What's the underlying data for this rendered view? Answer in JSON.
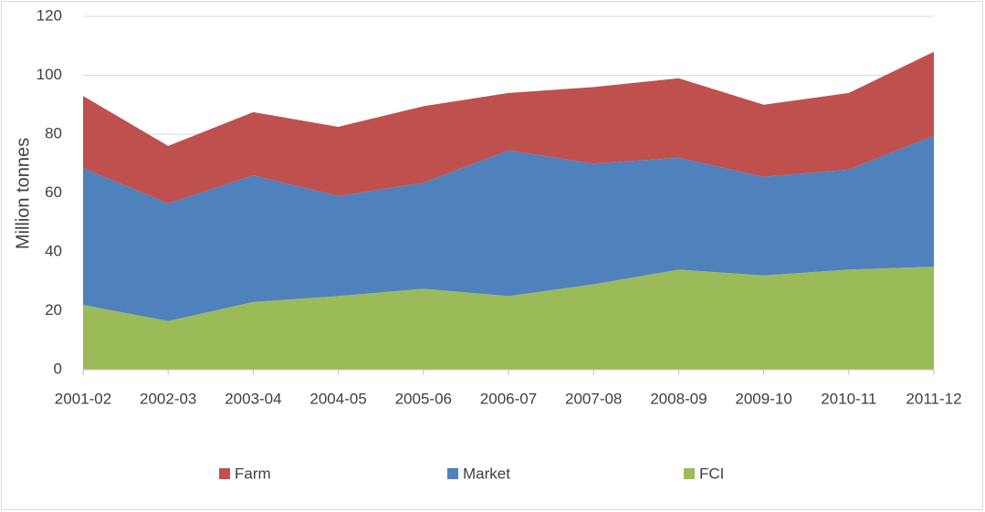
{
  "chart_data": {
    "type": "stacked_area",
    "y_label": "Million tonnes",
    "categories": [
      "2001-02",
      "2002-03",
      "2003-04",
      "2004-05",
      "2005-06",
      "2006-07",
      "2007-08",
      "2008-09",
      "2009-10",
      "2010-11",
      "2011-12"
    ],
    "series": [
      {
        "name": "Farm",
        "color": "#c0504d",
        "values": [
          24.5,
          19.5,
          21.5,
          23.5,
          26,
          19.5,
          26,
          27,
          24.5,
          26,
          28.5
        ]
      },
      {
        "name": "Market",
        "color": "#4f81bd",
        "values": [
          46.5,
          40,
          43,
          34,
          36,
          49.5,
          41,
          38,
          33.5,
          34,
          44.5
        ]
      },
      {
        "name": "FCI",
        "color": "#9bbb59",
        "values": [
          22,
          16.5,
          23,
          25,
          27.5,
          25,
          29,
          34,
          32,
          34,
          35
        ]
      }
    ],
    "ylim": [
      0,
      120
    ],
    "yticks": [
      0,
      20,
      40,
      60,
      80,
      100,
      120
    ],
    "grid": true,
    "legend": "bottom"
  }
}
